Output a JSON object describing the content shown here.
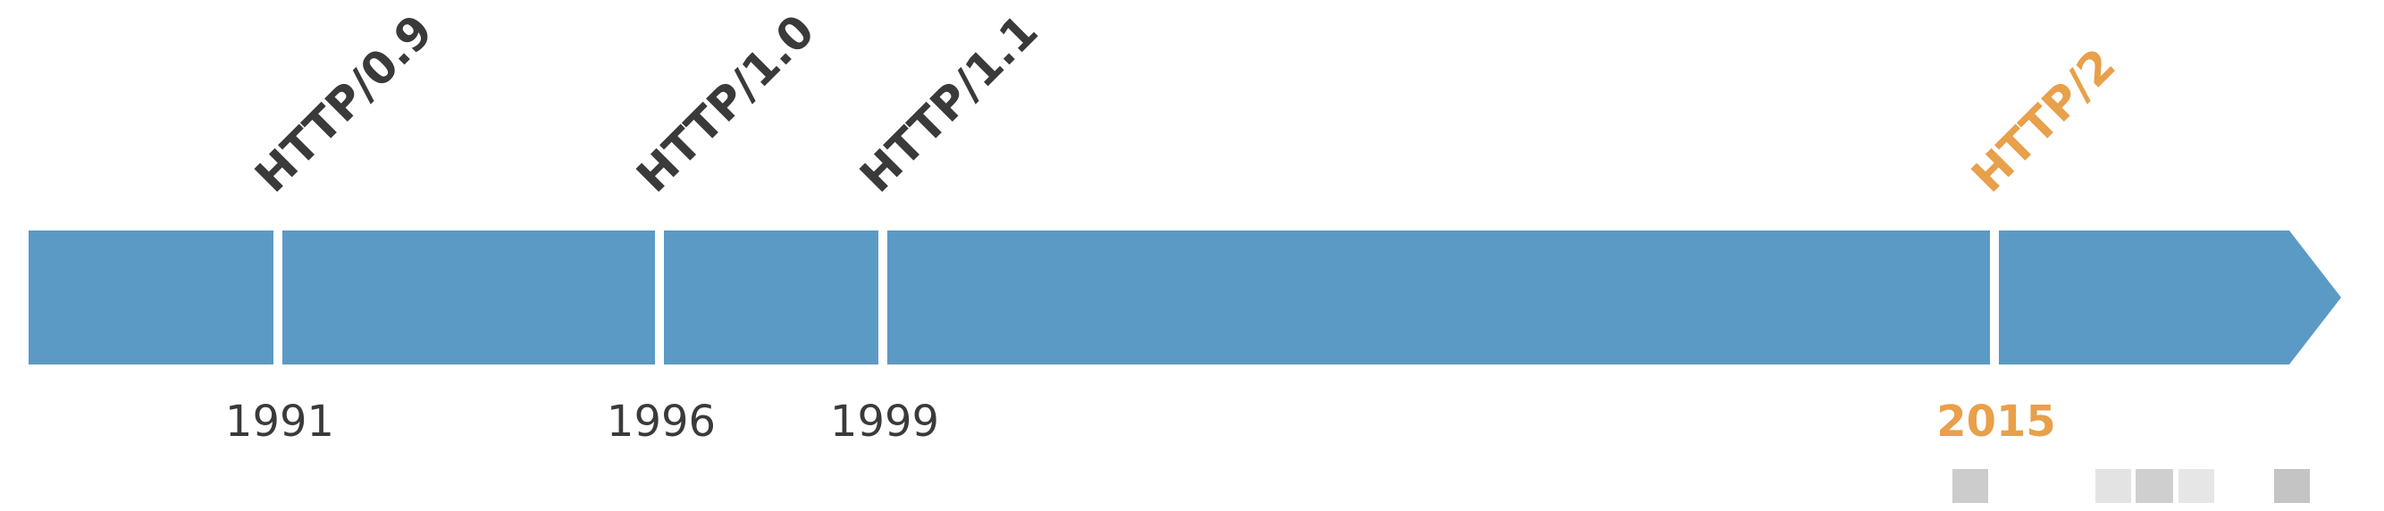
{
  "timeline": {
    "arrow_color": "#5b9ac5",
    "divider_color": "#ffffff",
    "text_color": "#3a3a3a",
    "highlight_color": "#e8a04a",
    "milestones": [
      {
        "version": "HTTP/0.9",
        "year": "1991",
        "highlight": false
      },
      {
        "version": "HTTP/1.0",
        "year": "1996",
        "highlight": false
      },
      {
        "version": "HTTP/1.1",
        "year": "1999",
        "highlight": false
      },
      {
        "version": "HTTP/2",
        "year": "2015",
        "highlight": true
      }
    ]
  }
}
